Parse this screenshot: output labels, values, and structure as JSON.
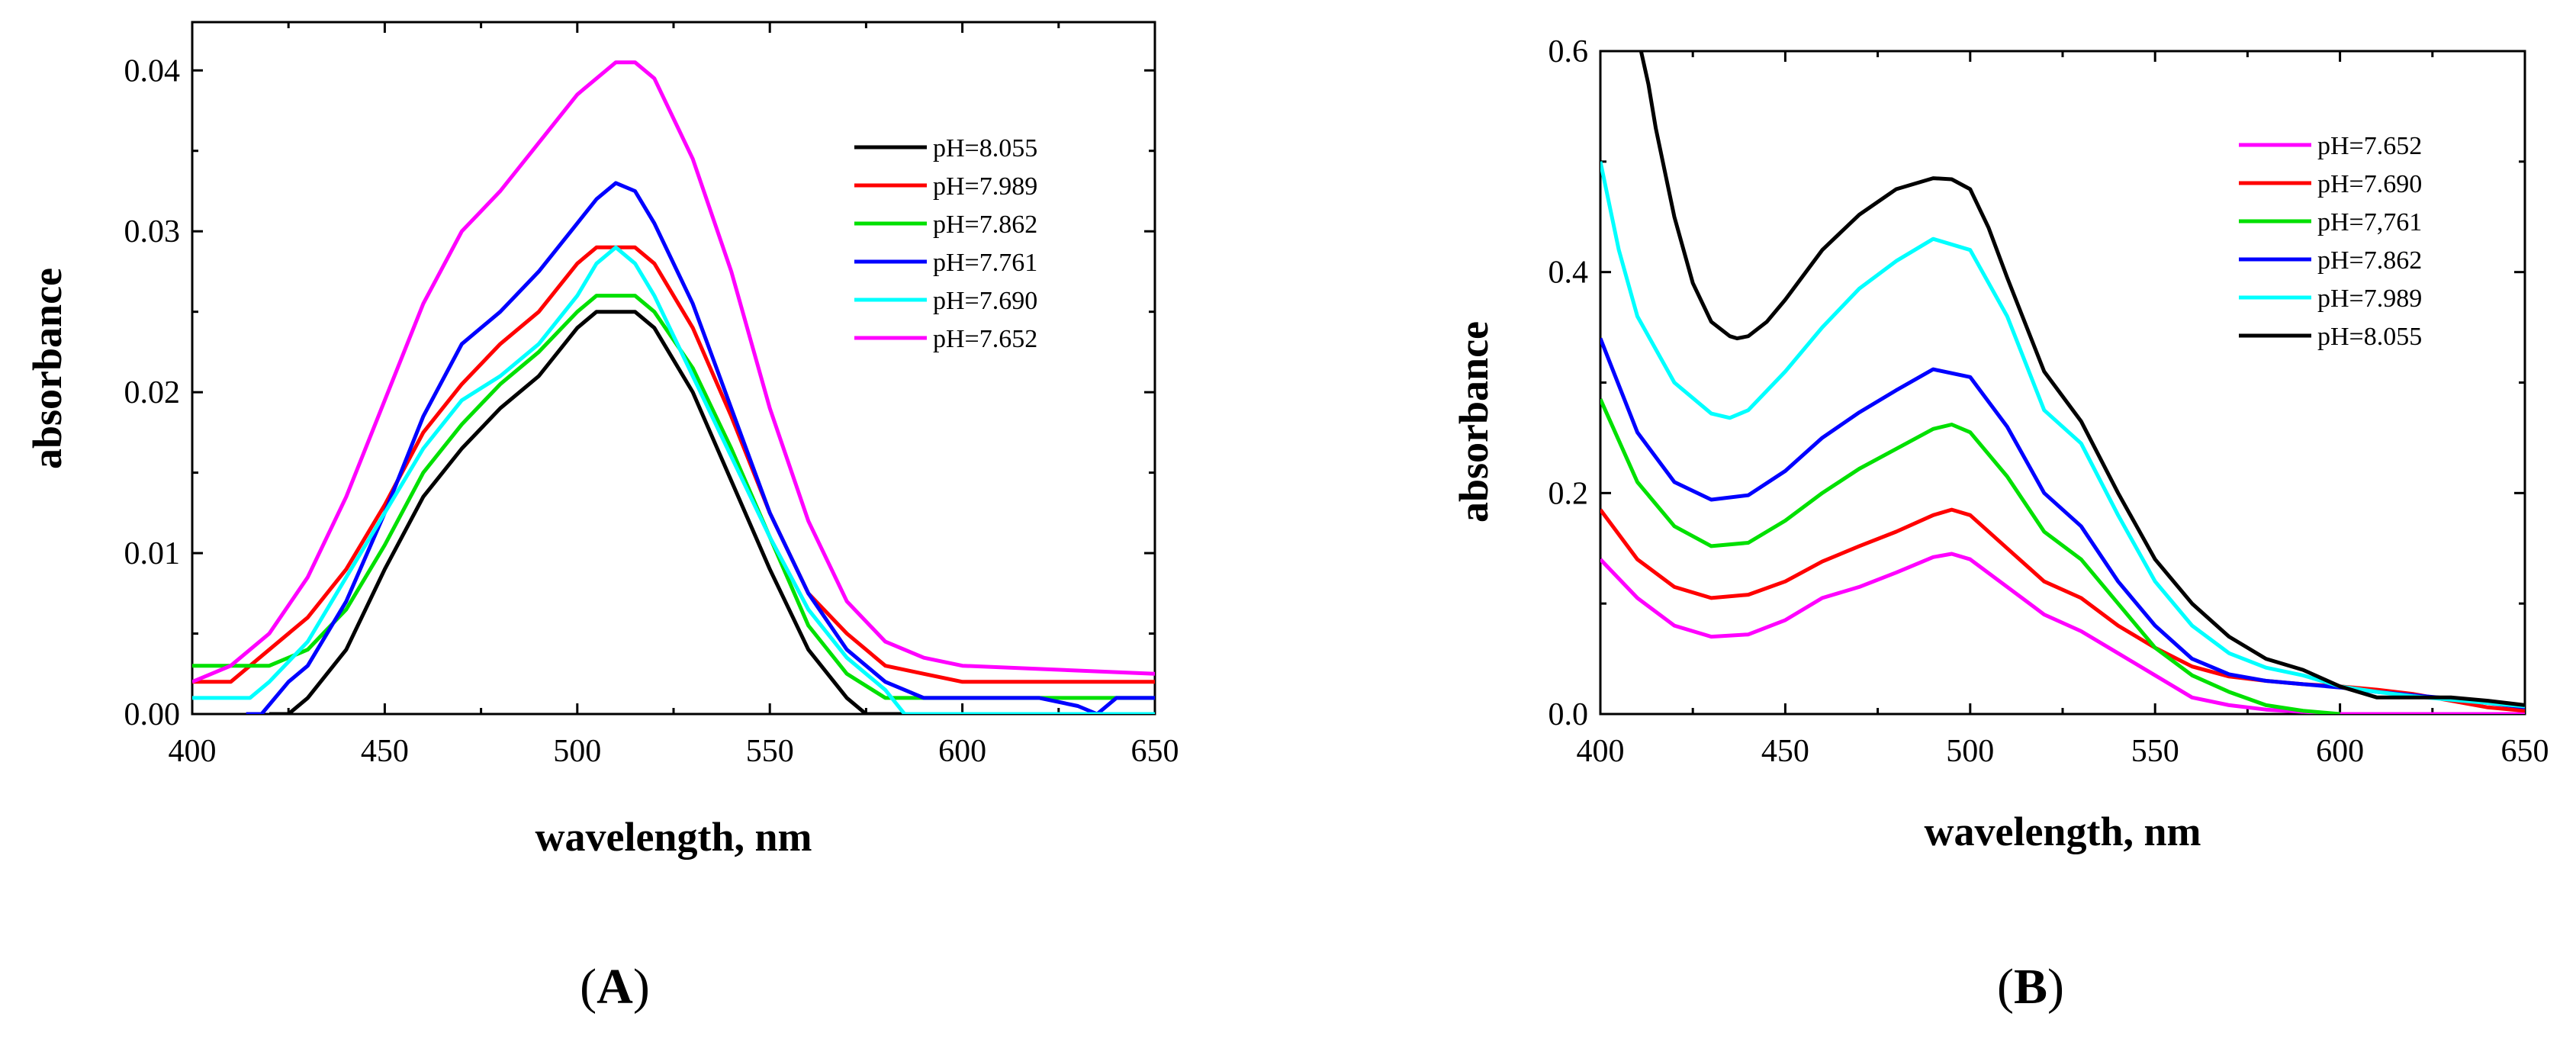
{
  "chart_data": [
    {
      "type": "line",
      "panel_label": "A",
      "xlabel": "wavelength, nm",
      "ylabel": "absorbance",
      "xlim": [
        400,
        650
      ],
      "ylim": [
        0,
        0.043
      ],
      "x_ticks": [
        400,
        450,
        500,
        550,
        600,
        650
      ],
      "x_tick_labels": [
        "400",
        "450",
        "500",
        "550",
        "600",
        "650"
      ],
      "y_ticks": [
        0,
        0.01,
        0.02,
        0.03,
        0.04
      ],
      "y_tick_labels": [
        "0.00",
        "0.01",
        "0.02",
        "0.03",
        "0.04"
      ],
      "legend_position": "right",
      "series": [
        {
          "name": "pH=8.055",
          "color": "#000000",
          "x": [
            420,
            425,
            430,
            440,
            450,
            460,
            470,
            480,
            490,
            500,
            505,
            510,
            515,
            520,
            530,
            540,
            550,
            560,
            570,
            575,
            580,
            590,
            600,
            650
          ],
          "values": [
            0,
            0,
            0.001,
            0.004,
            0.009,
            0.0135,
            0.0165,
            0.019,
            0.021,
            0.024,
            0.025,
            0.025,
            0.025,
            0.024,
            0.02,
            0.0145,
            0.009,
            0.004,
            0.001,
            0,
            0,
            0,
            0,
            0
          ]
        },
        {
          "name": "pH=7.989",
          "color": "#ff0000",
          "x": [
            400,
            405,
            410,
            420,
            430,
            440,
            450,
            460,
            470,
            480,
            490,
            500,
            505,
            510,
            515,
            520,
            530,
            540,
            550,
            560,
            570,
            580,
            590,
            600,
            650
          ],
          "values": [
            0.002,
            0.002,
            0.002,
            0.004,
            0.006,
            0.009,
            0.013,
            0.0175,
            0.0205,
            0.023,
            0.025,
            0.028,
            0.029,
            0.029,
            0.029,
            0.028,
            0.024,
            0.0185,
            0.0125,
            0.0075,
            0.005,
            0.003,
            0.0025,
            0.002,
            0.002
          ]
        },
        {
          "name": "pH=7.862",
          "color": "#00e000",
          "x": [
            400,
            405,
            410,
            420,
            430,
            440,
            450,
            460,
            470,
            480,
            490,
            500,
            505,
            510,
            515,
            520,
            530,
            540,
            550,
            560,
            570,
            580,
            590,
            600,
            650
          ],
          "values": [
            0.003,
            0.003,
            0.003,
            0.003,
            0.004,
            0.0065,
            0.0105,
            0.015,
            0.018,
            0.0205,
            0.0225,
            0.025,
            0.026,
            0.026,
            0.026,
            0.025,
            0.0215,
            0.0165,
            0.011,
            0.0055,
            0.0025,
            0.001,
            0.001,
            0.001,
            0.001
          ]
        },
        {
          "name": "pH=7.761",
          "color": "#0000ff",
          "x": [
            414,
            418,
            425,
            430,
            440,
            450,
            460,
            470,
            480,
            490,
            500,
            505,
            510,
            515,
            520,
            530,
            540,
            550,
            560,
            570,
            580,
            590,
            600,
            620,
            630,
            635,
            640,
            650
          ],
          "values": [
            0,
            0,
            0.002,
            0.003,
            0.007,
            0.0125,
            0.0185,
            0.023,
            0.025,
            0.0275,
            0.0305,
            0.032,
            0.033,
            0.0325,
            0.0305,
            0.0255,
            0.019,
            0.0125,
            0.0075,
            0.004,
            0.002,
            0.001,
            0.001,
            0.001,
            0.0005,
            0,
            0.001,
            0.001
          ]
        },
        {
          "name": "pH=7.690",
          "color": "#00ffff",
          "x": [
            400,
            405,
            410,
            415,
            420,
            430,
            440,
            450,
            460,
            470,
            480,
            490,
            500,
            505,
            510,
            515,
            520,
            530,
            540,
            550,
            560,
            570,
            580,
            585,
            590,
            600,
            650
          ],
          "values": [
            0.001,
            0.001,
            0.001,
            0.001,
            0.002,
            0.0045,
            0.0085,
            0.0125,
            0.0165,
            0.0195,
            0.021,
            0.023,
            0.026,
            0.028,
            0.029,
            0.028,
            0.026,
            0.021,
            0.016,
            0.011,
            0.0065,
            0.0035,
            0.0015,
            0,
            0,
            0,
            0
          ]
        },
        {
          "name": "pH=7.652",
          "color": "#ff00ff",
          "x": [
            400,
            405,
            410,
            420,
            430,
            440,
            450,
            460,
            470,
            480,
            490,
            500,
            505,
            510,
            515,
            520,
            530,
            540,
            550,
            560,
            570,
            580,
            590,
            600,
            650
          ],
          "values": [
            0.002,
            0.0025,
            0.003,
            0.005,
            0.0085,
            0.0135,
            0.0195,
            0.0255,
            0.03,
            0.0325,
            0.0355,
            0.0385,
            0.0395,
            0.0405,
            0.0405,
            0.0395,
            0.0345,
            0.0275,
            0.019,
            0.012,
            0.007,
            0.0045,
            0.0035,
            0.003,
            0.0025
          ]
        }
      ]
    },
    {
      "type": "line",
      "panel_label": "B",
      "xlabel": "wavelength, nm",
      "ylabel": "absorbance",
      "xlim": [
        400,
        650
      ],
      "ylim": [
        0,
        0.6
      ],
      "x_ticks": [
        400,
        450,
        500,
        550,
        600,
        650
      ],
      "x_tick_labels": [
        "400",
        "450",
        "500",
        "550",
        "600",
        "650"
      ],
      "y_ticks": [
        0,
        0.2,
        0.4,
        0.6
      ],
      "y_tick_labels": [
        "0.0",
        "0.2",
        "0.4",
        "0.6"
      ],
      "legend_position": "right",
      "series": [
        {
          "name": "pH=7.652",
          "color": "#ff00ff",
          "x": [
            400,
            410,
            420,
            430,
            440,
            450,
            460,
            470,
            480,
            490,
            495,
            500,
            510,
            520,
            530,
            540,
            550,
            560,
            570,
            580,
            590,
            600,
            650
          ],
          "values": [
            0.14,
            0.105,
            0.08,
            0.07,
            0.072,
            0.085,
            0.105,
            0.115,
            0.128,
            0.142,
            0.145,
            0.14,
            0.115,
            0.09,
            0.075,
            0.055,
            0.035,
            0.015,
            0.008,
            0.004,
            0.002,
            0,
            0
          ]
        },
        {
          "name": "pH=7.690",
          "color": "#ff0000",
          "x": [
            400,
            410,
            420,
            430,
            440,
            450,
            460,
            470,
            480,
            490,
            495,
            500,
            510,
            520,
            530,
            540,
            550,
            560,
            570,
            580,
            590,
            600,
            610,
            620,
            630,
            640,
            650
          ],
          "values": [
            0.185,
            0.14,
            0.115,
            0.105,
            0.108,
            0.12,
            0.138,
            0.152,
            0.165,
            0.18,
            0.185,
            0.18,
            0.15,
            0.12,
            0.105,
            0.08,
            0.06,
            0.043,
            0.034,
            0.03,
            0.027,
            0.025,
            0.022,
            0.018,
            0.012,
            0.006,
            0.003
          ]
        },
        {
          "name": "pH=7,761",
          "color": "#00e000",
          "x": [
            400,
            410,
            420,
            430,
            440,
            450,
            460,
            470,
            480,
            490,
            495,
            500,
            510,
            520,
            530,
            540,
            550,
            560,
            570,
            580,
            590,
            600
          ],
          "values": [
            0.285,
            0.21,
            0.17,
            0.152,
            0.155,
            0.175,
            0.2,
            0.222,
            0.24,
            0.258,
            0.262,
            0.255,
            0.215,
            0.165,
            0.14,
            0.1,
            0.06,
            0.035,
            0.02,
            0.008,
            0.003,
            0
          ]
        },
        {
          "name": "pH=7.862",
          "color": "#0000ff",
          "x": [
            400,
            410,
            420,
            430,
            440,
            450,
            460,
            470,
            480,
            490,
            500,
            510,
            520,
            530,
            540,
            550,
            560,
            570,
            580,
            590,
            600,
            610,
            620,
            630,
            640,
            650
          ],
          "values": [
            0.34,
            0.255,
            0.21,
            0.194,
            0.198,
            0.22,
            0.25,
            0.273,
            0.293,
            0.312,
            0.305,
            0.26,
            0.2,
            0.17,
            0.12,
            0.08,
            0.05,
            0.036,
            0.03,
            0.027,
            0.024,
            0.02,
            0.017,
            0.014,
            0.01,
            0.006
          ]
        },
        {
          "name": "pH=7.989",
          "color": "#00ffff",
          "x": [
            400,
            405,
            410,
            420,
            430,
            435,
            440,
            450,
            460,
            470,
            480,
            490,
            500,
            510,
            520,
            530,
            540,
            550,
            560,
            570,
            580,
            590,
            600,
            610,
            620,
            630,
            640,
            650
          ],
          "values": [
            0.5,
            0.42,
            0.36,
            0.3,
            0.272,
            0.268,
            0.275,
            0.31,
            0.35,
            0.385,
            0.41,
            0.43,
            0.42,
            0.36,
            0.275,
            0.245,
            0.18,
            0.12,
            0.08,
            0.055,
            0.042,
            0.035,
            0.025,
            0.02,
            0.016,
            0.013,
            0.01,
            0.007
          ]
        },
        {
          "name": "pH=8.055",
          "color": "#000000",
          "x": [
            411,
            413,
            415,
            420,
            425,
            430,
            435,
            437,
            440,
            445,
            450,
            460,
            470,
            480,
            490,
            495,
            500,
            505,
            510,
            520,
            530,
            540,
            550,
            560,
            570,
            580,
            590,
            600,
            610,
            620,
            630,
            640,
            650
          ],
          "values": [
            0.6,
            0.57,
            0.53,
            0.45,
            0.39,
            0.355,
            0.342,
            0.34,
            0.342,
            0.355,
            0.375,
            0.42,
            0.452,
            0.475,
            0.485,
            0.484,
            0.475,
            0.44,
            0.395,
            0.31,
            0.265,
            0.2,
            0.14,
            0.1,
            0.07,
            0.05,
            0.04,
            0.025,
            0.015,
            0.015,
            0.015,
            0.012,
            0.008
          ]
        }
      ]
    }
  ]
}
